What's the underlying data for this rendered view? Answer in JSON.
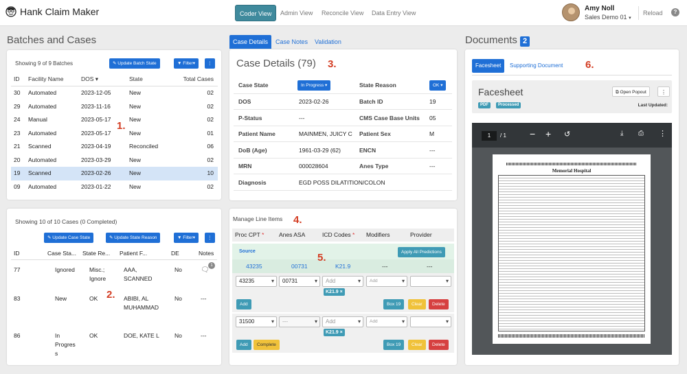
{
  "app": {
    "title": "Hank Claim Maker"
  },
  "nav": {
    "coder": "Coder View",
    "admin": "Admin View",
    "reconcile": "Reconcile View",
    "data_entry": "Data Entry View"
  },
  "user": {
    "name": "Amy Noll",
    "org": "Sales Demo 01",
    "reload": "Reload",
    "help": "?"
  },
  "batches": {
    "title": "Batches and Cases",
    "showing": "Showing 9 of 9 Batches",
    "update_btn": "Update Batch State",
    "filter_btn": "Filter",
    "more": "⋮",
    "headers": [
      "ID",
      "Facility Name",
      "DOS",
      "State",
      "Total Cases"
    ],
    "rows": [
      [
        "30",
        "Automated",
        "2023-12-05",
        "New",
        "02"
      ],
      [
        "29",
        "Automated",
        "2023-11-16",
        "New",
        "02"
      ],
      [
        "24",
        "Manual",
        "2023-05-17",
        "New",
        "02"
      ],
      [
        "23",
        "Automated",
        "2023-05-17",
        "New",
        "01"
      ],
      [
        "21",
        "Scanned",
        "2023-04-19",
        "Reconciled",
        "06"
      ],
      [
        "20",
        "Automated",
        "2023-03-29",
        "New",
        "02"
      ],
      [
        "19",
        "Scanned",
        "2023-02-26",
        "New",
        "10"
      ],
      [
        "09",
        "Automated",
        "2023-01-22",
        "New",
        "02"
      ]
    ],
    "marker": "1."
  },
  "cases": {
    "showing": "Showing 10 of 10 Cases (0 Completed)",
    "update_case_btn": "Update Case State",
    "update_reason_btn": "Update State Reason",
    "filter_btn": "Filter",
    "more": "⋮",
    "headers": [
      "ID",
      "Case Sta...",
      "State Re...",
      "Patient F...",
      "DE",
      "Notes"
    ],
    "rows": [
      {
        "id": "77",
        "state": "Ignored",
        "reason": "Misc.; Ignore",
        "patient": "AAA, SCANNED",
        "de": "No",
        "notes": "1"
      },
      {
        "id": "83",
        "state": "New",
        "reason": "OK",
        "patient": "ABIBI, AL MUHAMMAD",
        "de": "No",
        "notes": "---"
      },
      {
        "id": "86",
        "state": "In Progres s",
        "reason": "OK",
        "patient": "DOE, KATE L",
        "de": "No",
        "notes": "---"
      }
    ],
    "marker": "2."
  },
  "case_details": {
    "tabs": [
      "Case Details",
      "Case Notes",
      "Validation"
    ],
    "title": "Case Details (79)",
    "marker": "3.",
    "case_state_label": "Case State",
    "case_state_value": "In Progress",
    "state_reason_label": "State Reason",
    "state_reason_value": "OK",
    "fields_left": [
      {
        "label": "DOS",
        "value": "2023-02-26"
      },
      {
        "label": "P-Status",
        "value": "---"
      },
      {
        "label": "Patient Name",
        "value": "MAINMEN, JUICY C"
      },
      {
        "label": "DoB (Age)",
        "value": "1961-03-29 (62)"
      },
      {
        "label": "MRN",
        "value": "000028604"
      },
      {
        "label": "Diagnosis",
        "value": "EGD POSS DILATITION/COLON"
      }
    ],
    "fields_right": [
      {
        "label": "Batch ID",
        "value": "19"
      },
      {
        "label": "CMS Case Base Units",
        "value": "05"
      },
      {
        "label": "Patient Sex",
        "value": "M"
      },
      {
        "label": "ENCN",
        "value": "---"
      },
      {
        "label": "Anes Type",
        "value": "---"
      }
    ]
  },
  "line_items": {
    "title": "Manage Line Items",
    "marker": "4.",
    "marker2": "5.",
    "headers": [
      "Proc CPT",
      "Anes ASA",
      "ICD Codes",
      "Modifiers",
      "Provider"
    ],
    "source_label": "Source",
    "apply_all": "Apply All Predictions",
    "source_row": [
      "43235",
      "00731",
      "K21.9",
      "---",
      "---"
    ],
    "item1": {
      "cpt": "43235",
      "asa": "00731",
      "icd": "Add",
      "mod": "Add",
      "tag": "K21.9 ×"
    },
    "item2": {
      "cpt": "31500",
      "asa": "---",
      "icd": "Add",
      "mod": "Add",
      "tag": "K21.9 ×"
    },
    "add": "Add",
    "complete": "Complete",
    "box19": "Box 19",
    "clear": "Clear",
    "delete": "Delete"
  },
  "documents": {
    "title": "Documents",
    "count": "2",
    "tabs": [
      "Facesheet",
      "Supporting Document"
    ],
    "marker": "6.",
    "doc_title": "Facesheet",
    "badges": [
      "PDF",
      "Processed"
    ],
    "open_popout": "Open Popout",
    "last_updated": "Last Updated:",
    "page_input": "1",
    "page_total": "/ 1",
    "hospital": "Memorial Hospital"
  },
  "colors": {
    "primary": "#1f6fd6",
    "teal": "#3f9bb5",
    "warning": "#f0c23a",
    "danger": "#d64040",
    "marker": "#d33c22"
  }
}
